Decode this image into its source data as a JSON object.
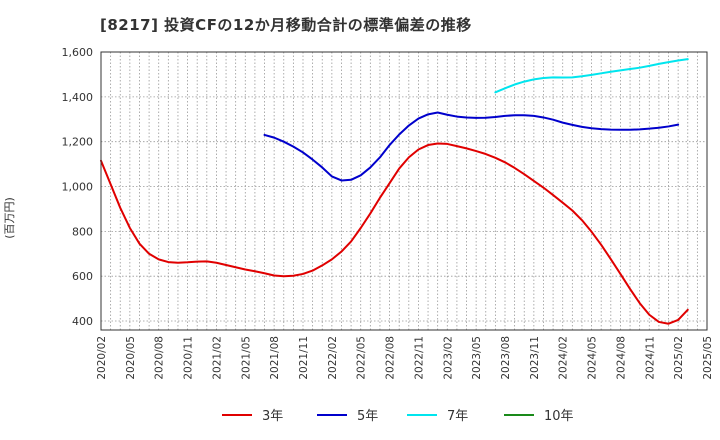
{
  "title": "[8217]  投資CFの12か月移動合計の標準偏差の推移",
  "chart_data": {
    "type": "line",
    "ylabel": "(百万円)",
    "ylim": [
      360,
      1600
    ],
    "yticks": [
      400,
      600,
      800,
      1000,
      1200,
      1400,
      1600
    ],
    "ytick_labels": [
      "400",
      "600",
      "800",
      "1,000",
      "1,200",
      "1,400",
      "1,600"
    ],
    "x_range": [
      "2020-02",
      "2025-05"
    ],
    "xtick_labels": [
      "2020/02",
      "2020/05",
      "2020/08",
      "2020/11",
      "2021/02",
      "2021/05",
      "2021/08",
      "2021/11",
      "2022/02",
      "2022/05",
      "2022/08",
      "2022/11",
      "2023/02",
      "2023/05",
      "2023/08",
      "2023/11",
      "2024/02",
      "2024/05",
      "2024/08",
      "2024/11",
      "2025/02",
      "2025/05"
    ],
    "grid": true,
    "legend_position": "bottom",
    "series": [
      {
        "name": "3年",
        "color": "#e00000",
        "points": [
          [
            "2020-02",
            1115
          ],
          [
            "2020-03",
            1010
          ],
          [
            "2020-04",
            905
          ],
          [
            "2020-05",
            815
          ],
          [
            "2020-06",
            745
          ],
          [
            "2020-07",
            700
          ],
          [
            "2020-08",
            675
          ],
          [
            "2020-09",
            663
          ],
          [
            "2020-10",
            660
          ],
          [
            "2020-11",
            662
          ],
          [
            "2020-12",
            665
          ],
          [
            "2021-01",
            666
          ],
          [
            "2021-02",
            660
          ],
          [
            "2021-03",
            650
          ],
          [
            "2021-04",
            640
          ],
          [
            "2021-05",
            630
          ],
          [
            "2021-06",
            622
          ],
          [
            "2021-07",
            613
          ],
          [
            "2021-08",
            603
          ],
          [
            "2021-09",
            600
          ],
          [
            "2021-10",
            602
          ],
          [
            "2021-11",
            610
          ],
          [
            "2021-12",
            625
          ],
          [
            "2022-01",
            648
          ],
          [
            "2022-02",
            675
          ],
          [
            "2022-03",
            710
          ],
          [
            "2022-04",
            755
          ],
          [
            "2022-05",
            815
          ],
          [
            "2022-06",
            880
          ],
          [
            "2022-07",
            950
          ],
          [
            "2022-08",
            1015
          ],
          [
            "2022-09",
            1080
          ],
          [
            "2022-10",
            1130
          ],
          [
            "2022-11",
            1165
          ],
          [
            "2022-12",
            1185
          ],
          [
            "2023-01",
            1192
          ],
          [
            "2023-02",
            1190
          ],
          [
            "2023-03",
            1180
          ],
          [
            "2023-04",
            1170
          ],
          [
            "2023-05",
            1158
          ],
          [
            "2023-06",
            1145
          ],
          [
            "2023-07",
            1128
          ],
          [
            "2023-08",
            1108
          ],
          [
            "2023-09",
            1083
          ],
          [
            "2023-10",
            1055
          ],
          [
            "2023-11",
            1025
          ],
          [
            "2023-12",
            995
          ],
          [
            "2024-01",
            962
          ],
          [
            "2024-02",
            928
          ],
          [
            "2024-03",
            893
          ],
          [
            "2024-04",
            850
          ],
          [
            "2024-05",
            798
          ],
          [
            "2024-06",
            740
          ],
          [
            "2024-07",
            676
          ],
          [
            "2024-08",
            610
          ],
          [
            "2024-09",
            543
          ],
          [
            "2024-10",
            480
          ],
          [
            "2024-11",
            428
          ],
          [
            "2024-12",
            396
          ],
          [
            "2025-01",
            388
          ],
          [
            "2025-02",
            405
          ],
          [
            "2025-03",
            450
          ]
        ]
      },
      {
        "name": "5年",
        "color": "#0000cc",
        "points": [
          [
            "2021-07",
            1230
          ],
          [
            "2021-08",
            1218
          ],
          [
            "2021-09",
            1200
          ],
          [
            "2021-10",
            1178
          ],
          [
            "2021-11",
            1152
          ],
          [
            "2021-12",
            1120
          ],
          [
            "2022-01",
            1085
          ],
          [
            "2022-02",
            1045
          ],
          [
            "2022-03",
            1027
          ],
          [
            "2022-04",
            1030
          ],
          [
            "2022-05",
            1050
          ],
          [
            "2022-06",
            1085
          ],
          [
            "2022-07",
            1130
          ],
          [
            "2022-08",
            1185
          ],
          [
            "2022-09",
            1232
          ],
          [
            "2022-10",
            1272
          ],
          [
            "2022-11",
            1303
          ],
          [
            "2022-12",
            1322
          ],
          [
            "2023-01",
            1330
          ],
          [
            "2023-02",
            1320
          ],
          [
            "2023-03",
            1312
          ],
          [
            "2023-04",
            1308
          ],
          [
            "2023-05",
            1306
          ],
          [
            "2023-06",
            1307
          ],
          [
            "2023-07",
            1310
          ],
          [
            "2023-08",
            1315
          ],
          [
            "2023-09",
            1318
          ],
          [
            "2023-10",
            1318
          ],
          [
            "2023-11",
            1315
          ],
          [
            "2023-12",
            1308
          ],
          [
            "2024-01",
            1298
          ],
          [
            "2024-02",
            1285
          ],
          [
            "2024-03",
            1275
          ],
          [
            "2024-04",
            1266
          ],
          [
            "2024-05",
            1260
          ],
          [
            "2024-06",
            1256
          ],
          [
            "2024-07",
            1254
          ],
          [
            "2024-08",
            1253
          ],
          [
            "2024-09",
            1253
          ],
          [
            "2024-10",
            1255
          ],
          [
            "2024-11",
            1258
          ],
          [
            "2024-12",
            1262
          ],
          [
            "2025-01",
            1268
          ],
          [
            "2025-02",
            1276
          ]
        ]
      },
      {
        "name": "7年",
        "color": "#00e5ee",
        "points": [
          [
            "2023-07",
            1420
          ],
          [
            "2023-08",
            1438
          ],
          [
            "2023-09",
            1455
          ],
          [
            "2023-10",
            1468
          ],
          [
            "2023-11",
            1478
          ],
          [
            "2023-12",
            1484
          ],
          [
            "2024-01",
            1487
          ],
          [
            "2024-02",
            1486
          ],
          [
            "2024-03",
            1487
          ],
          [
            "2024-04",
            1492
          ],
          [
            "2024-05",
            1498
          ],
          [
            "2024-06",
            1505
          ],
          [
            "2024-07",
            1512
          ],
          [
            "2024-08",
            1518
          ],
          [
            "2024-09",
            1524
          ],
          [
            "2024-10",
            1530
          ],
          [
            "2024-11",
            1538
          ],
          [
            "2024-12",
            1547
          ],
          [
            "2025-01",
            1555
          ],
          [
            "2025-02",
            1562
          ],
          [
            "2025-03",
            1568
          ]
        ]
      },
      {
        "name": "10年",
        "color": "#1a8a1a",
        "points": []
      }
    ]
  }
}
